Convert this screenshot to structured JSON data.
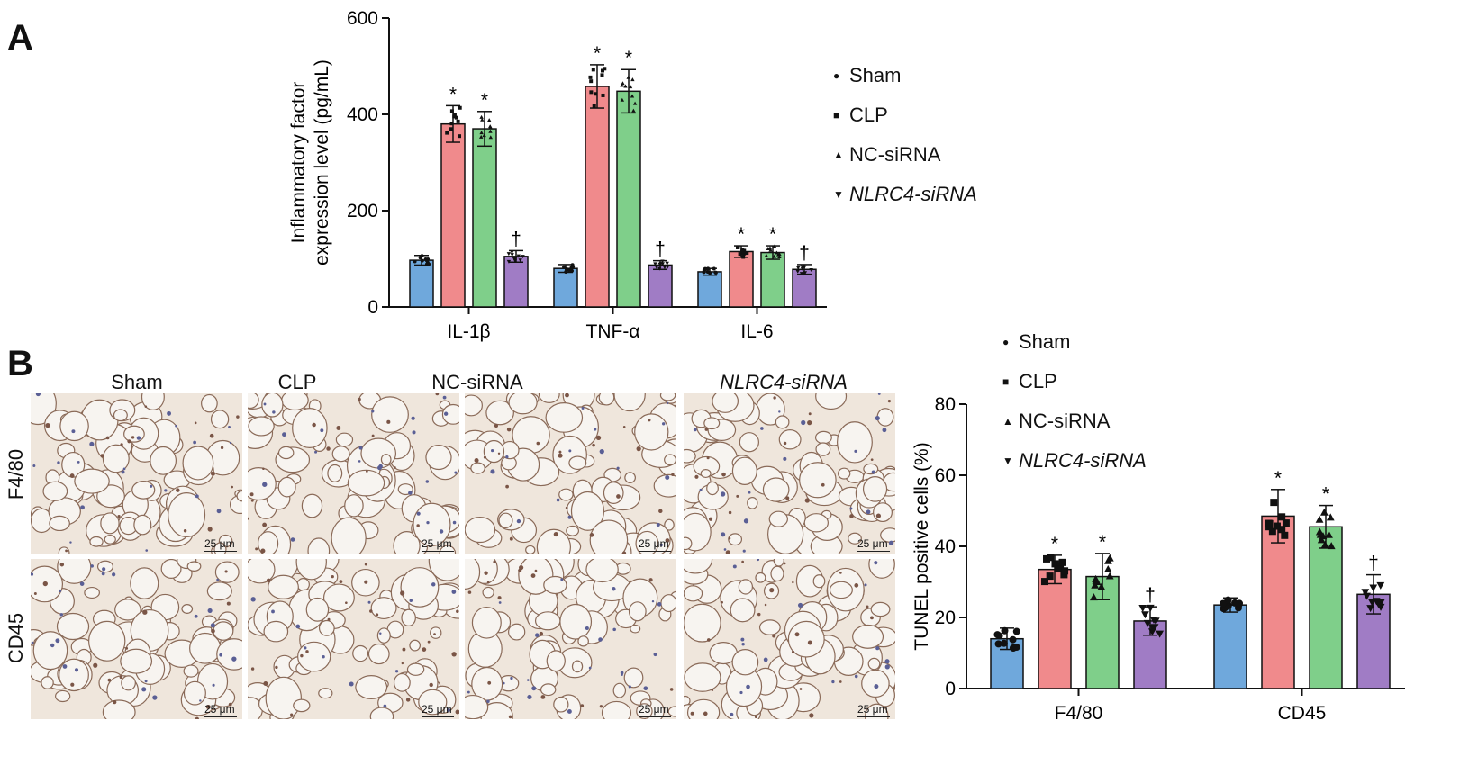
{
  "panels": {
    "A": "A",
    "B": "B"
  },
  "legend": {
    "items": [
      {
        "label": "Sham",
        "italic": false,
        "color": "#6fa8dc"
      },
      {
        "label": "CLP",
        "italic": false,
        "color": "#f08a8c"
      },
      {
        "label": "NC-siRNA",
        "italic": false,
        "color": "#7fcf8a"
      },
      {
        "label": "NLRC4-siRNA",
        "italic": true,
        "color": "#a07cc5"
      }
    ]
  },
  "micrographs": {
    "column_headers": [
      "Sham",
      "CLP",
      "NC-siRNA",
      "NLRC4-siRNA"
    ],
    "row_labels": [
      "F4/80",
      "CD45"
    ],
    "scale_bar": "25 μm"
  },
  "chart_data": [
    {
      "type": "bar",
      "panel": "A",
      "categories": [
        "IL-1β",
        "TNF-α",
        "IL-6"
      ],
      "ylabel": [
        "Inflammatory factor",
        "expression level (pg/mL)"
      ],
      "xlabel": "",
      "ylim": [
        0,
        600
      ],
      "yticks": [
        0,
        200,
        400,
        600
      ],
      "series": [
        {
          "name": "Sham",
          "values": [
            97,
            80,
            73
          ],
          "errors": [
            10,
            8,
            7
          ],
          "marks": [
            "",
            "",
            ""
          ]
        },
        {
          "name": "CLP",
          "values": [
            380,
            458,
            115
          ],
          "errors": [
            38,
            45,
            12
          ],
          "marks": [
            "*",
            "*",
            "*"
          ]
        },
        {
          "name": "NC-siRNA",
          "values": [
            370,
            448,
            113
          ],
          "errors": [
            36,
            45,
            14
          ],
          "marks": [
            "*",
            "*",
            "*"
          ]
        },
        {
          "name": "NLRC4-siRNA",
          "values": [
            105,
            87,
            78
          ],
          "errors": [
            12,
            9,
            10
          ],
          "marks": [
            "†",
            "†",
            "†"
          ]
        }
      ]
    },
    {
      "type": "bar",
      "panel": "B",
      "categories": [
        "F4/80",
        "CD45"
      ],
      "ylabel": "TUNEL positive cells (%)",
      "xlabel": "",
      "ylim": [
        0,
        80
      ],
      "yticks": [
        0,
        20,
        40,
        60,
        80
      ],
      "series": [
        {
          "name": "Sham",
          "values": [
            14,
            23.5
          ],
          "errors": [
            3,
            2
          ],
          "marks": [
            "",
            ""
          ]
        },
        {
          "name": "CLP",
          "values": [
            33.5,
            48.5
          ],
          "errors": [
            4,
            7.5
          ],
          "marks": [
            "*",
            "*"
          ]
        },
        {
          "name": "NC-siRNA",
          "values": [
            31.5,
            45.5
          ],
          "errors": [
            6.5,
            6
          ],
          "marks": [
            "*",
            "*"
          ]
        },
        {
          "name": "NLRC4-siRNA",
          "values": [
            19,
            26.5
          ],
          "errors": [
            4,
            5.5
          ],
          "marks": [
            "†",
            "†"
          ]
        }
      ]
    }
  ]
}
